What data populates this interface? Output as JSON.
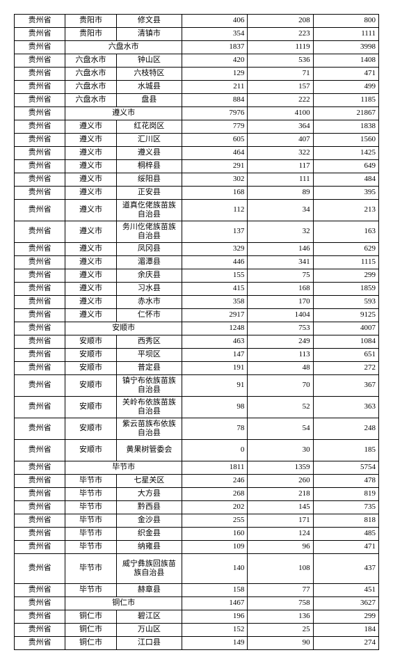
{
  "rows": [
    {
      "cells": [
        "贵州省",
        "贵阳市",
        "修文县",
        "406",
        "208",
        "800"
      ]
    },
    {
      "cells": [
        "贵州省",
        "贵阳市",
        "清镇市",
        "354",
        "223",
        "1111"
      ]
    },
    {
      "cells": [
        "贵州省",
        {
          "span": 2,
          "text": "六盘水市"
        },
        "1837",
        "1119",
        "3998"
      ]
    },
    {
      "cells": [
        "贵州省",
        "六盘水市",
        "钟山区",
        "420",
        "536",
        "1408"
      ]
    },
    {
      "cells": [
        "贵州省",
        "六盘水市",
        "六枝特区",
        "129",
        "71",
        "471"
      ]
    },
    {
      "cells": [
        "贵州省",
        "六盘水市",
        "水城县",
        "211",
        "157",
        "499"
      ]
    },
    {
      "cells": [
        "贵州省",
        "六盘水市",
        "盘县",
        "884",
        "222",
        "1185"
      ]
    },
    {
      "cells": [
        "贵州省",
        {
          "span": 2,
          "text": "遵义市"
        },
        "7976",
        "4100",
        "21867"
      ]
    },
    {
      "cells": [
        "贵州省",
        "遵义市",
        "红花岗区",
        "779",
        "364",
        "1838"
      ]
    },
    {
      "cells": [
        "贵州省",
        "遵义市",
        "汇川区",
        "605",
        "407",
        "1560"
      ]
    },
    {
      "cells": [
        "贵州省",
        "遵义市",
        "遵义县",
        "464",
        "322",
        "1425"
      ]
    },
    {
      "cells": [
        "贵州省",
        "遵义市",
        "桐梓县",
        "291",
        "117",
        "649"
      ]
    },
    {
      "cells": [
        "贵州省",
        "遵义市",
        "绥阳县",
        "302",
        "111",
        "484"
      ]
    },
    {
      "cells": [
        "贵州省",
        "遵义市",
        "正安县",
        "168",
        "89",
        "395"
      ]
    },
    {
      "cells": [
        "贵州省",
        "遵义市",
        "道真仡佬族苗族自治县",
        "112",
        "34",
        "213"
      ],
      "tall": true
    },
    {
      "cells": [
        "贵州省",
        "遵义市",
        "务川仡佬族苗族自治县",
        "137",
        "32",
        "163"
      ],
      "tall": true
    },
    {
      "cells": [
        "贵州省",
        "遵义市",
        "凤冈县",
        "329",
        "146",
        "629"
      ]
    },
    {
      "cells": [
        "贵州省",
        "遵义市",
        "湄潭县",
        "446",
        "341",
        "1115"
      ]
    },
    {
      "cells": [
        "贵州省",
        "遵义市",
        "余庆县",
        "155",
        "75",
        "299"
      ]
    },
    {
      "cells": [
        "贵州省",
        "遵义市",
        "习水县",
        "415",
        "168",
        "1859"
      ]
    },
    {
      "cells": [
        "贵州省",
        "遵义市",
        "赤水市",
        "358",
        "170",
        "593"
      ]
    },
    {
      "cells": [
        "贵州省",
        "遵义市",
        "仁怀市",
        "2917",
        "1404",
        "9125"
      ]
    },
    {
      "cells": [
        "贵州省",
        {
          "span": 2,
          "text": "安顺市"
        },
        "1248",
        "753",
        "4007"
      ]
    },
    {
      "cells": [
        "贵州省",
        "安顺市",
        "西秀区",
        "463",
        "249",
        "1084"
      ]
    },
    {
      "cells": [
        "贵州省",
        "安顺市",
        "平坝区",
        "147",
        "113",
        "651"
      ]
    },
    {
      "cells": [
        "贵州省",
        "安顺市",
        "普定县",
        "191",
        "48",
        "272"
      ]
    },
    {
      "cells": [
        "贵州省",
        "安顺市",
        "镇宁布依族苗族自治县",
        "91",
        "70",
        "367"
      ],
      "tall": true
    },
    {
      "cells": [
        "贵州省",
        "安顺市",
        "关岭布依族苗族自治县",
        "98",
        "52",
        "363"
      ],
      "tall": true
    },
    {
      "cells": [
        "贵州省",
        "安顺市",
        "紫云苗族布依族自治县",
        "78",
        "54",
        "248"
      ],
      "tall": true
    },
    {
      "cells": [
        "贵州省",
        "安顺市",
        "黄果树管委会",
        "0",
        "30",
        "185"
      ],
      "tall": true
    },
    {
      "cells": [
        "贵州省",
        {
          "span": 2,
          "text": "毕节市"
        },
        "1811",
        "1359",
        "5754"
      ]
    },
    {
      "cells": [
        "贵州省",
        "毕节市",
        "七星关区",
        "246",
        "260",
        "478"
      ]
    },
    {
      "cells": [
        "贵州省",
        "毕节市",
        "大方县",
        "268",
        "218",
        "819"
      ]
    },
    {
      "cells": [
        "贵州省",
        "毕节市",
        "黔西县",
        "202",
        "145",
        "735"
      ]
    },
    {
      "cells": [
        "贵州省",
        "毕节市",
        "金沙县",
        "255",
        "171",
        "818"
      ]
    },
    {
      "cells": [
        "贵州省",
        "毕节市",
        "织金县",
        "160",
        "124",
        "485"
      ]
    },
    {
      "cells": [
        "贵州省",
        "毕节市",
        "纳雍县",
        "109",
        "96",
        "471"
      ]
    },
    {
      "cells": [
        "贵州省",
        "毕节市",
        "威宁彝族回族苗族自治县",
        "140",
        "108",
        "437"
      ],
      "tall3": true
    },
    {
      "cells": [
        "贵州省",
        "毕节市",
        "赫章县",
        "158",
        "77",
        "451"
      ]
    },
    {
      "cells": [
        "贵州省",
        {
          "span": 2,
          "text": "铜仁市"
        },
        "1467",
        "758",
        "3627"
      ]
    },
    {
      "cells": [
        "贵州省",
        "铜仁市",
        "碧江区",
        "196",
        "136",
        "299"
      ]
    },
    {
      "cells": [
        "贵州省",
        "铜仁市",
        "万山区",
        "152",
        "25",
        "184"
      ]
    },
    {
      "cells": [
        "贵州省",
        "铜仁市",
        "江口县",
        "149",
        "90",
        "274"
      ]
    }
  ]
}
